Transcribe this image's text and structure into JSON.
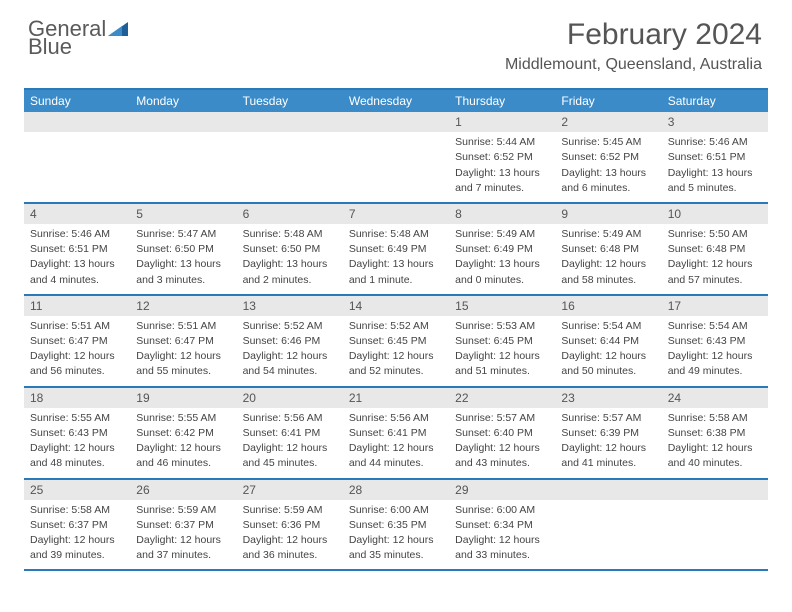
{
  "brand": {
    "general": "General",
    "blue": "Blue"
  },
  "title": "February 2024",
  "location": "Middlemount, Queensland, Australia",
  "colors": {
    "header_bg": "#3b8bc9",
    "rule": "#2a7ab9",
    "daynum_bg": "#e8e8e8",
    "text": "#444444"
  },
  "weekdays": [
    "Sunday",
    "Monday",
    "Tuesday",
    "Wednesday",
    "Thursday",
    "Friday",
    "Saturday"
  ],
  "weeks": [
    [
      {
        "blank": true
      },
      {
        "blank": true
      },
      {
        "blank": true
      },
      {
        "blank": true
      },
      {
        "n": "1",
        "sr": "Sunrise: 5:44 AM",
        "ss": "Sunset: 6:52 PM",
        "d1": "Daylight: 13 hours",
        "d2": "and 7 minutes."
      },
      {
        "n": "2",
        "sr": "Sunrise: 5:45 AM",
        "ss": "Sunset: 6:52 PM",
        "d1": "Daylight: 13 hours",
        "d2": "and 6 minutes."
      },
      {
        "n": "3",
        "sr": "Sunrise: 5:46 AM",
        "ss": "Sunset: 6:51 PM",
        "d1": "Daylight: 13 hours",
        "d2": "and 5 minutes."
      }
    ],
    [
      {
        "n": "4",
        "sr": "Sunrise: 5:46 AM",
        "ss": "Sunset: 6:51 PM",
        "d1": "Daylight: 13 hours",
        "d2": "and 4 minutes."
      },
      {
        "n": "5",
        "sr": "Sunrise: 5:47 AM",
        "ss": "Sunset: 6:50 PM",
        "d1": "Daylight: 13 hours",
        "d2": "and 3 minutes."
      },
      {
        "n": "6",
        "sr": "Sunrise: 5:48 AM",
        "ss": "Sunset: 6:50 PM",
        "d1": "Daylight: 13 hours",
        "d2": "and 2 minutes."
      },
      {
        "n": "7",
        "sr": "Sunrise: 5:48 AM",
        "ss": "Sunset: 6:49 PM",
        "d1": "Daylight: 13 hours",
        "d2": "and 1 minute."
      },
      {
        "n": "8",
        "sr": "Sunrise: 5:49 AM",
        "ss": "Sunset: 6:49 PM",
        "d1": "Daylight: 13 hours",
        "d2": "and 0 minutes."
      },
      {
        "n": "9",
        "sr": "Sunrise: 5:49 AM",
        "ss": "Sunset: 6:48 PM",
        "d1": "Daylight: 12 hours",
        "d2": "and 58 minutes."
      },
      {
        "n": "10",
        "sr": "Sunrise: 5:50 AM",
        "ss": "Sunset: 6:48 PM",
        "d1": "Daylight: 12 hours",
        "d2": "and 57 minutes."
      }
    ],
    [
      {
        "n": "11",
        "sr": "Sunrise: 5:51 AM",
        "ss": "Sunset: 6:47 PM",
        "d1": "Daylight: 12 hours",
        "d2": "and 56 minutes."
      },
      {
        "n": "12",
        "sr": "Sunrise: 5:51 AM",
        "ss": "Sunset: 6:47 PM",
        "d1": "Daylight: 12 hours",
        "d2": "and 55 minutes."
      },
      {
        "n": "13",
        "sr": "Sunrise: 5:52 AM",
        "ss": "Sunset: 6:46 PM",
        "d1": "Daylight: 12 hours",
        "d2": "and 54 minutes."
      },
      {
        "n": "14",
        "sr": "Sunrise: 5:52 AM",
        "ss": "Sunset: 6:45 PM",
        "d1": "Daylight: 12 hours",
        "d2": "and 52 minutes."
      },
      {
        "n": "15",
        "sr": "Sunrise: 5:53 AM",
        "ss": "Sunset: 6:45 PM",
        "d1": "Daylight: 12 hours",
        "d2": "and 51 minutes."
      },
      {
        "n": "16",
        "sr": "Sunrise: 5:54 AM",
        "ss": "Sunset: 6:44 PM",
        "d1": "Daylight: 12 hours",
        "d2": "and 50 minutes."
      },
      {
        "n": "17",
        "sr": "Sunrise: 5:54 AM",
        "ss": "Sunset: 6:43 PM",
        "d1": "Daylight: 12 hours",
        "d2": "and 49 minutes."
      }
    ],
    [
      {
        "n": "18",
        "sr": "Sunrise: 5:55 AM",
        "ss": "Sunset: 6:43 PM",
        "d1": "Daylight: 12 hours",
        "d2": "and 48 minutes."
      },
      {
        "n": "19",
        "sr": "Sunrise: 5:55 AM",
        "ss": "Sunset: 6:42 PM",
        "d1": "Daylight: 12 hours",
        "d2": "and 46 minutes."
      },
      {
        "n": "20",
        "sr": "Sunrise: 5:56 AM",
        "ss": "Sunset: 6:41 PM",
        "d1": "Daylight: 12 hours",
        "d2": "and 45 minutes."
      },
      {
        "n": "21",
        "sr": "Sunrise: 5:56 AM",
        "ss": "Sunset: 6:41 PM",
        "d1": "Daylight: 12 hours",
        "d2": "and 44 minutes."
      },
      {
        "n": "22",
        "sr": "Sunrise: 5:57 AM",
        "ss": "Sunset: 6:40 PM",
        "d1": "Daylight: 12 hours",
        "d2": "and 43 minutes."
      },
      {
        "n": "23",
        "sr": "Sunrise: 5:57 AM",
        "ss": "Sunset: 6:39 PM",
        "d1": "Daylight: 12 hours",
        "d2": "and 41 minutes."
      },
      {
        "n": "24",
        "sr": "Sunrise: 5:58 AM",
        "ss": "Sunset: 6:38 PM",
        "d1": "Daylight: 12 hours",
        "d2": "and 40 minutes."
      }
    ],
    [
      {
        "n": "25",
        "sr": "Sunrise: 5:58 AM",
        "ss": "Sunset: 6:37 PM",
        "d1": "Daylight: 12 hours",
        "d2": "and 39 minutes."
      },
      {
        "n": "26",
        "sr": "Sunrise: 5:59 AM",
        "ss": "Sunset: 6:37 PM",
        "d1": "Daylight: 12 hours",
        "d2": "and 37 minutes."
      },
      {
        "n": "27",
        "sr": "Sunrise: 5:59 AM",
        "ss": "Sunset: 6:36 PM",
        "d1": "Daylight: 12 hours",
        "d2": "and 36 minutes."
      },
      {
        "n": "28",
        "sr": "Sunrise: 6:00 AM",
        "ss": "Sunset: 6:35 PM",
        "d1": "Daylight: 12 hours",
        "d2": "and 35 minutes."
      },
      {
        "n": "29",
        "sr": "Sunrise: 6:00 AM",
        "ss": "Sunset: 6:34 PM",
        "d1": "Daylight: 12 hours",
        "d2": "and 33 minutes."
      },
      {
        "blank": true
      },
      {
        "blank": true
      }
    ]
  ]
}
